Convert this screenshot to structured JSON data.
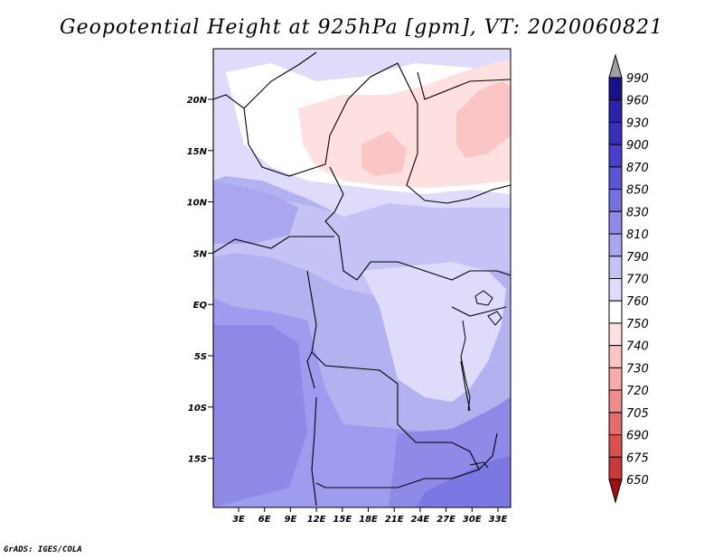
{
  "title": "Geopotential Height at 925hPa [gpm], VT: 2020060821",
  "credit": "GrADS: IGES/COLA",
  "map": {
    "lat_labels": [
      "20N",
      "15N",
      "10N",
      "5N",
      "EQ",
      "5S",
      "10S",
      "15S"
    ],
    "lon_labels": [
      "3E",
      "6E",
      "9E",
      "12E",
      "15E",
      "18E",
      "21E",
      "24E",
      "27E",
      "30E",
      "33E"
    ],
    "background_color": "#b2b2f0",
    "border_color": "#000000"
  },
  "colorbar": {
    "levels": [
      "990",
      "960",
      "930",
      "900",
      "870",
      "850",
      "830",
      "810",
      "790",
      "770",
      "760",
      "750",
      "740",
      "730",
      "720",
      "705",
      "690",
      "675",
      "650"
    ],
    "colors": [
      "#19108c",
      "#2a22a8",
      "#3830bb",
      "#4840cc",
      "#5b55d8",
      "#7570e0",
      "#8f8ae8",
      "#aaa6ef",
      "#c5c2f5",
      "#dedcfa",
      "#ffffff",
      "#ffe0e0",
      "#fcc5c5",
      "#f7aaaa",
      "#ef8c8c",
      "#e56c6c",
      "#d85050",
      "#c93838",
      "#b21e1e"
    ],
    "top_arrow_color": "#a0a0a0",
    "bottom_arrow_color": "#a01010"
  }
}
